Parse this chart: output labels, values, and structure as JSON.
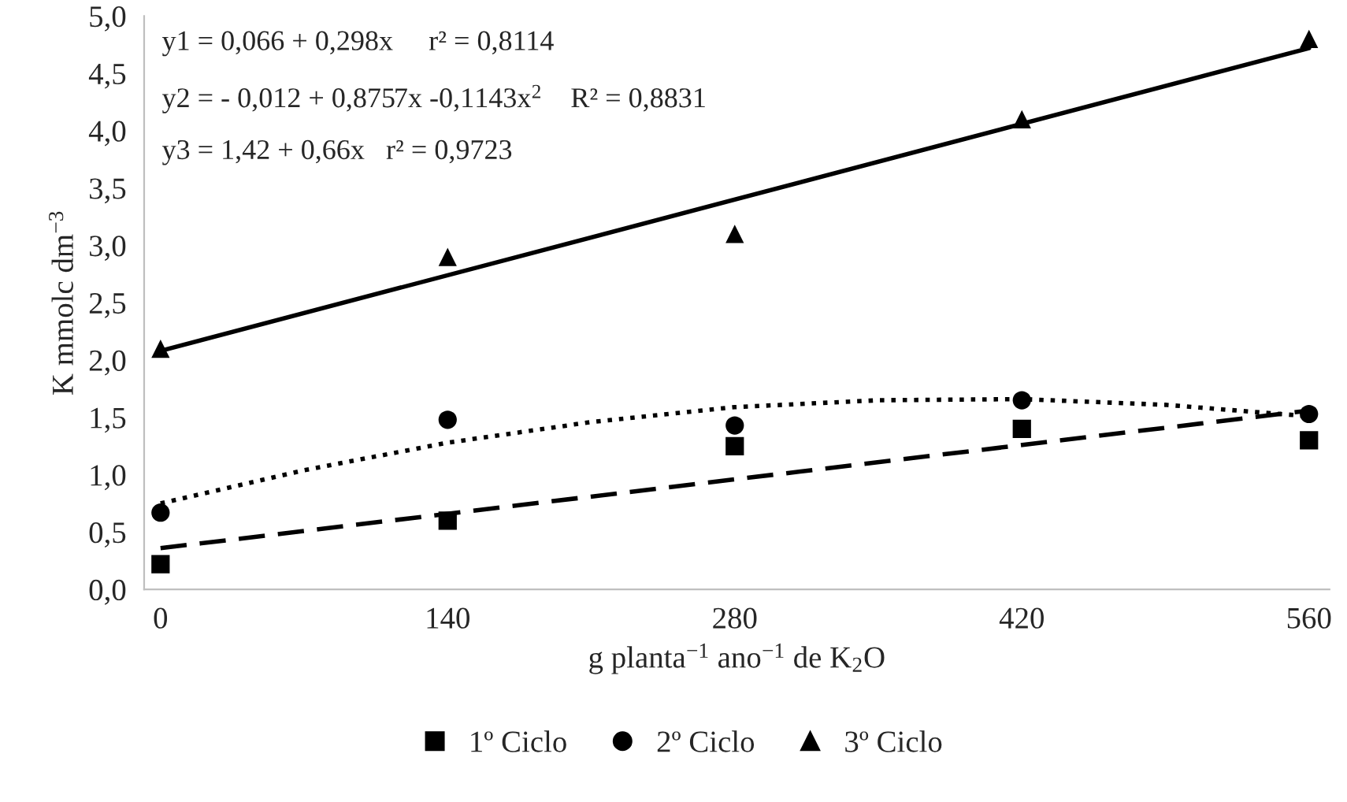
{
  "chart_data": {
    "type": "scatter",
    "xlabel": "g planta$^{−1}$ ano$^{−1}$ de K$_{2}$O",
    "ylabel": "K mmolc dm$^{−3}$",
    "x": [
      0,
      140,
      280,
      420,
      560
    ],
    "xlim": [
      -8,
      570
    ],
    "xticks": [
      0,
      140,
      280,
      420,
      560
    ],
    "ylim": [
      0,
      5
    ],
    "yticks": [
      {
        "value": 0,
        "label": "0,0"
      },
      {
        "value": 0.5,
        "label": "0,5"
      },
      {
        "value": 1,
        "label": "1,0"
      },
      {
        "value": 1.5,
        "label": "1,5"
      },
      {
        "value": 2,
        "label": "2,0"
      },
      {
        "value": 2.5,
        "label": "2,5"
      },
      {
        "value": 3,
        "label": "3,0"
      },
      {
        "value": 3.5,
        "label": "3,5"
      },
      {
        "value": 4,
        "label": "4,0"
      },
      {
        "value": 4.5,
        "label": "4,5"
      },
      {
        "value": 5,
        "label": "5,0"
      }
    ],
    "grid": false,
    "legend": "bottom",
    "series": [
      {
        "name": "1º Ciclo",
        "marker": "square",
        "color": "#000000",
        "values": [
          0.22,
          0.6,
          1.25,
          1.4,
          1.3
        ]
      },
      {
        "name": "2º Ciclo",
        "marker": "circle",
        "color": "#000000",
        "values": [
          0.67,
          1.48,
          1.43,
          1.65,
          1.53
        ]
      },
      {
        "name": "3º Ciclo",
        "marker": "triangle",
        "color": "#000000",
        "values": [
          2.1,
          2.9,
          3.1,
          4.1,
          4.8
        ]
      },
      {
        "type": "line",
        "line_style": "dashed",
        "color": "#000000",
        "x": [
          0,
          560
        ],
        "values": [
          0.36,
          1.56
        ]
      },
      {
        "type": "line",
        "line_style": "dotted",
        "color": "#000000",
        "x": [
          0,
          70,
          140,
          210,
          280,
          350,
          420,
          490,
          560
        ],
        "values": [
          0.75,
          1.04,
          1.28,
          1.46,
          1.59,
          1.65,
          1.66,
          1.61,
          1.51
        ]
      },
      {
        "type": "line",
        "line_style": "solid",
        "color": "#000000",
        "x": [
          0,
          560
        ],
        "values": [
          2.08,
          4.72
        ]
      }
    ],
    "annotations": [
      "y1 = 0,066 + 0,298x     r² = 0,8114",
      "y2 = - 0,012 + 0,8757x -0,1143x$^{2}$    R² = 0,8831",
      "y3 = 1,42 + 0,66x   r² = 0,9723"
    ]
  }
}
